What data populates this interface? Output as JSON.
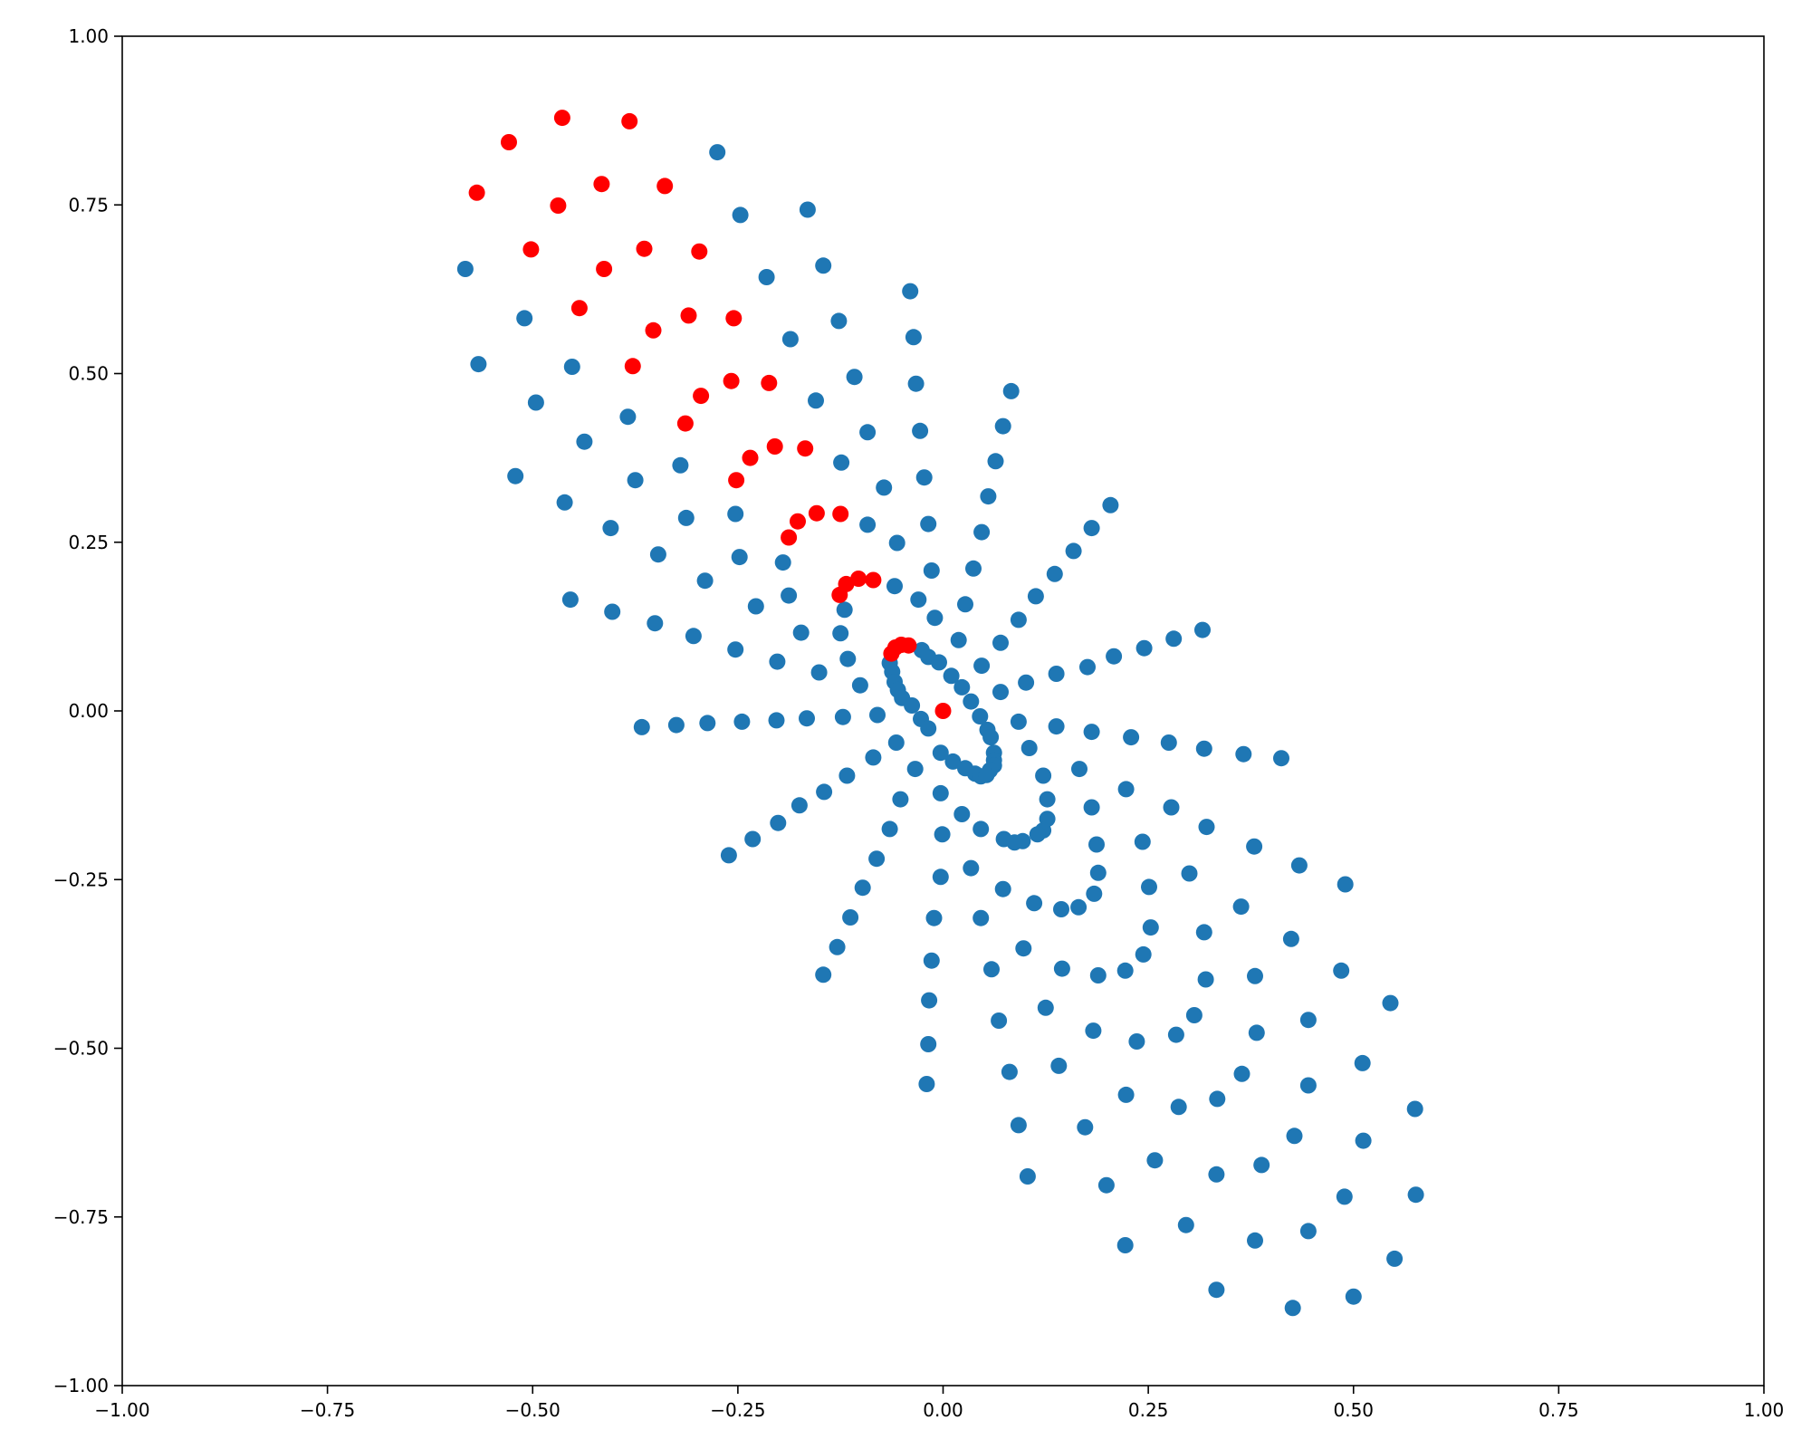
{
  "chart_data": {
    "type": "scatter",
    "title": "",
    "xlabel": "",
    "ylabel": "",
    "xlim": [
      -1.0,
      1.0
    ],
    "ylim": [
      -1.0,
      1.0
    ],
    "grid": false,
    "x_ticks": [
      -1.0,
      -0.75,
      -0.5,
      -0.25,
      0.0,
      0.25,
      0.5,
      0.75,
      1.0
    ],
    "x_tick_labels": [
      "−1.00",
      "−0.75",
      "−0.50",
      "−0.25",
      "0.00",
      "0.25",
      "0.50",
      "0.75",
      "1.00"
    ],
    "y_ticks": [
      -1.0,
      -0.75,
      -0.5,
      -0.25,
      0.0,
      0.25,
      0.5,
      0.75,
      1.0
    ],
    "y_tick_labels": [
      "−1.00",
      "−0.75",
      "−0.50",
      "−0.25",
      "0.00",
      "0.25",
      "0.50",
      "0.75",
      "1.00"
    ],
    "series": [
      {
        "color": "#1f77b4",
        "points": [
          [
            -0.275,
            0.828
          ],
          [
            -0.247,
            0.735
          ],
          [
            -0.165,
            0.743
          ],
          [
            -0.582,
            0.655
          ],
          [
            -0.215,
            0.643
          ],
          [
            -0.146,
            0.66
          ],
          [
            -0.51,
            0.582
          ],
          [
            -0.127,
            0.578
          ],
          [
            -0.04,
            0.622
          ],
          [
            -0.566,
            0.514
          ],
          [
            -0.452,
            0.51
          ],
          [
            -0.186,
            0.551
          ],
          [
            -0.036,
            0.554
          ],
          [
            -0.108,
            0.495
          ],
          [
            -0.496,
            0.457
          ],
          [
            -0.155,
            0.46
          ],
          [
            -0.033,
            0.485
          ],
          [
            0.083,
            0.474
          ],
          [
            -0.384,
            0.436
          ],
          [
            -0.437,
            0.399
          ],
          [
            -0.092,
            0.413
          ],
          [
            -0.028,
            0.415
          ],
          [
            0.073,
            0.422
          ],
          [
            -0.32,
            0.364
          ],
          [
            -0.124,
            0.368
          ],
          [
            0.064,
            0.37
          ],
          [
            -0.521,
            0.348
          ],
          [
            -0.375,
            0.342
          ],
          [
            -0.023,
            0.346
          ],
          [
            -0.072,
            0.331
          ],
          [
            -0.461,
            0.309
          ],
          [
            0.055,
            0.318
          ],
          [
            0.204,
            0.305
          ],
          [
            -0.253,
            0.292
          ],
          [
            -0.313,
            0.286
          ],
          [
            -0.092,
            0.276
          ],
          [
            -0.018,
            0.277
          ],
          [
            0.181,
            0.271
          ],
          [
            -0.405,
            0.271
          ],
          [
            0.047,
            0.265
          ],
          [
            -0.056,
            0.249
          ],
          [
            0.159,
            0.237
          ],
          [
            -0.347,
            0.232
          ],
          [
            -0.248,
            0.228
          ],
          [
            -0.195,
            0.22
          ],
          [
            0.037,
            0.211
          ],
          [
            -0.014,
            0.208
          ],
          [
            0.136,
            0.203
          ],
          [
            -0.29,
            0.193
          ],
          [
            -0.059,
            0.185
          ],
          [
            -0.188,
            0.171
          ],
          [
            0.113,
            0.17
          ],
          [
            -0.454,
            0.165
          ],
          [
            -0.03,
            0.165
          ],
          [
            0.027,
            0.158
          ],
          [
            -0.228,
            0.155
          ],
          [
            -0.403,
            0.147
          ],
          [
            -0.12,
            0.15
          ],
          [
            -0.01,
            0.138
          ],
          [
            0.092,
            0.135
          ],
          [
            -0.351,
            0.13
          ],
          [
            0.316,
            0.12
          ],
          [
            -0.173,
            0.116
          ],
          [
            -0.125,
            0.115
          ],
          [
            -0.304,
            0.111
          ],
          [
            0.281,
            0.107
          ],
          [
            0.019,
            0.105
          ],
          [
            0.07,
            0.101
          ],
          [
            -0.253,
            0.091
          ],
          [
            0.245,
            0.093
          ],
          [
            -0.026,
            0.09
          ],
          [
            0.208,
            0.081
          ],
          [
            -0.018,
            0.08
          ],
          [
            -0.116,
            0.077
          ],
          [
            -0.005,
            0.072
          ],
          [
            -0.202,
            0.073
          ],
          [
            -0.065,
            0.071
          ],
          [
            0.047,
            0.067
          ],
          [
            0.176,
            0.065
          ],
          [
            -0.062,
            0.058
          ],
          [
            -0.151,
            0.057
          ],
          [
            0.138,
            0.055
          ],
          [
            0.01,
            0.052
          ],
          [
            -0.059,
            0.043
          ],
          [
            0.101,
            0.042
          ],
          [
            -0.101,
            0.038
          ],
          [
            0.023,
            0.035
          ],
          [
            -0.055,
            0.031
          ],
          [
            0.07,
            0.028
          ],
          [
            -0.05,
            0.019
          ],
          [
            0.034,
            0.014
          ],
          [
            -0.038,
            0.008
          ],
          [
            -0.08,
            -0.006
          ],
          [
            0.045,
            -0.008
          ],
          [
            -0.122,
            -0.009
          ],
          [
            -0.027,
            -0.012
          ],
          [
            -0.166,
            -0.011
          ],
          [
            0.092,
            -0.016
          ],
          [
            -0.203,
            -0.014
          ],
          [
            -0.245,
            -0.016
          ],
          [
            -0.287,
            -0.018
          ],
          [
            0.138,
            -0.023
          ],
          [
            -0.325,
            -0.021
          ],
          [
            0.054,
            -0.028
          ],
          [
            -0.367,
            -0.024
          ],
          [
            -0.018,
            -0.026
          ],
          [
            0.181,
            -0.031
          ],
          [
            0.229,
            -0.039
          ],
          [
            0.058,
            -0.039
          ],
          [
            0.275,
            -0.047
          ],
          [
            -0.057,
            -0.047
          ],
          [
            0.318,
            -0.056
          ],
          [
            0.105,
            -0.055
          ],
          [
            -0.003,
            -0.062
          ],
          [
            0.062,
            -0.062
          ],
          [
            0.366,
            -0.064
          ],
          [
            0.412,
            -0.07
          ],
          [
            -0.085,
            -0.069
          ],
          [
            0.062,
            -0.073
          ],
          [
            0.012,
            -0.075
          ],
          [
            0.062,
            -0.081
          ],
          [
            0.027,
            -0.085
          ],
          [
            0.057,
            -0.088
          ],
          [
            -0.034,
            -0.086
          ],
          [
            0.166,
            -0.086
          ],
          [
            0.039,
            -0.093
          ],
          [
            0.046,
            -0.097
          ],
          [
            0.053,
            -0.095
          ],
          [
            0.122,
            -0.096
          ],
          [
            -0.117,
            -0.096
          ],
          [
            0.223,
            -0.116
          ],
          [
            -0.145,
            -0.12
          ],
          [
            -0.003,
            -0.122
          ],
          [
            0.127,
            -0.131
          ],
          [
            -0.052,
            -0.131
          ],
          [
            -0.175,
            -0.14
          ],
          [
            0.181,
            -0.143
          ],
          [
            0.278,
            -0.143
          ],
          [
            0.023,
            -0.153
          ],
          [
            0.127,
            -0.16
          ],
          [
            -0.201,
            -0.166
          ],
          [
            0.321,
            -0.172
          ],
          [
            0.046,
            -0.175
          ],
          [
            -0.065,
            -0.175
          ],
          [
            0.122,
            -0.177
          ],
          [
            0.115,
            -0.183
          ],
          [
            -0.001,
            -0.183
          ],
          [
            0.074,
            -0.19
          ],
          [
            -0.232,
            -0.19
          ],
          [
            0.097,
            -0.193
          ],
          [
            0.087,
            -0.195
          ],
          [
            0.187,
            -0.198
          ],
          [
            0.243,
            -0.194
          ],
          [
            0.379,
            -0.201
          ],
          [
            -0.261,
            -0.214
          ],
          [
            0.434,
            -0.229
          ],
          [
            -0.081,
            -0.219
          ],
          [
            0.034,
            -0.233
          ],
          [
            0.189,
            -0.24
          ],
          [
            0.3,
            -0.241
          ],
          [
            -0.003,
            -0.246
          ],
          [
            0.49,
            -0.257
          ],
          [
            -0.098,
            -0.262
          ],
          [
            0.073,
            -0.264
          ],
          [
            0.251,
            -0.261
          ],
          [
            0.184,
            -0.271
          ],
          [
            0.111,
            -0.285
          ],
          [
            0.165,
            -0.291
          ],
          [
            0.144,
            -0.294
          ],
          [
            0.363,
            -0.29
          ],
          [
            -0.113,
            -0.306
          ],
          [
            -0.011,
            -0.307
          ],
          [
            0.046,
            -0.307
          ],
          [
            0.253,
            -0.321
          ],
          [
            0.318,
            -0.328
          ],
          [
            0.424,
            -0.338
          ],
          [
            -0.129,
            -0.35
          ],
          [
            0.098,
            -0.352
          ],
          [
            0.244,
            -0.361
          ],
          [
            -0.014,
            -0.37
          ],
          [
            0.059,
            -0.383
          ],
          [
            0.145,
            -0.382
          ],
          [
            0.222,
            -0.385
          ],
          [
            0.485,
            -0.385
          ],
          [
            0.38,
            -0.393
          ],
          [
            -0.146,
            -0.391
          ],
          [
            0.189,
            -0.392
          ],
          [
            0.32,
            -0.398
          ],
          [
            -0.017,
            -0.429
          ],
          [
            0.545,
            -0.433
          ],
          [
            0.125,
            -0.44
          ],
          [
            0.306,
            -0.451
          ],
          [
            0.068,
            -0.459
          ],
          [
            0.445,
            -0.458
          ],
          [
            0.183,
            -0.474
          ],
          [
            0.382,
            -0.477
          ],
          [
            0.284,
            -0.48
          ],
          [
            0.236,
            -0.49
          ],
          [
            -0.018,
            -0.494
          ],
          [
            0.141,
            -0.526
          ],
          [
            0.511,
            -0.522
          ],
          [
            0.081,
            -0.535
          ],
          [
            0.364,
            -0.538
          ],
          [
            -0.02,
            -0.553
          ],
          [
            0.445,
            -0.555
          ],
          [
            0.223,
            -0.569
          ],
          [
            0.334,
            -0.575
          ],
          [
            0.287,
            -0.587
          ],
          [
            0.575,
            -0.59
          ],
          [
            0.092,
            -0.614
          ],
          [
            0.173,
            -0.617
          ],
          [
            0.428,
            -0.63
          ],
          [
            0.512,
            -0.637
          ],
          [
            0.258,
            -0.666
          ],
          [
            0.388,
            -0.673
          ],
          [
            0.333,
            -0.687
          ],
          [
            0.103,
            -0.69
          ],
          [
            0.199,
            -0.703
          ],
          [
            0.489,
            -0.72
          ],
          [
            0.576,
            -0.717
          ],
          [
            0.296,
            -0.762
          ],
          [
            0.445,
            -0.771
          ],
          [
            0.38,
            -0.785
          ],
          [
            0.222,
            -0.792
          ],
          [
            0.55,
            -0.812
          ],
          [
            0.333,
            -0.858
          ],
          [
            0.5,
            -0.868
          ],
          [
            0.426,
            -0.885
          ]
        ]
      },
      {
        "color": "#ff0000",
        "points": [
          [
            -0.464,
            0.879
          ],
          [
            -0.382,
            0.874
          ],
          [
            -0.529,
            0.843
          ],
          [
            -0.568,
            0.768
          ],
          [
            -0.416,
            0.781
          ],
          [
            -0.339,
            0.778
          ],
          [
            -0.469,
            0.749
          ],
          [
            -0.502,
            0.684
          ],
          [
            -0.364,
            0.685
          ],
          [
            -0.297,
            0.681
          ],
          [
            -0.413,
            0.655
          ],
          [
            -0.443,
            0.597
          ],
          [
            -0.31,
            0.586
          ],
          [
            -0.255,
            0.582
          ],
          [
            -0.353,
            0.564
          ],
          [
            -0.378,
            0.511
          ],
          [
            -0.258,
            0.489
          ],
          [
            -0.212,
            0.486
          ],
          [
            -0.295,
            0.467
          ],
          [
            -0.314,
            0.426
          ],
          [
            -0.205,
            0.392
          ],
          [
            -0.168,
            0.389
          ],
          [
            -0.235,
            0.375
          ],
          [
            -0.252,
            0.342
          ],
          [
            -0.154,
            0.293
          ],
          [
            -0.125,
            0.292
          ],
          [
            -0.177,
            0.281
          ],
          [
            -0.188,
            0.257
          ],
          [
            -0.103,
            0.196
          ],
          [
            -0.085,
            0.194
          ],
          [
            -0.118,
            0.188
          ],
          [
            -0.126,
            0.172
          ],
          [
            -0.051,
            0.098
          ],
          [
            -0.042,
            0.097
          ],
          [
            -0.058,
            0.094
          ],
          [
            -0.063,
            0.085
          ],
          [
            0.0,
            0.0
          ]
        ]
      }
    ]
  }
}
